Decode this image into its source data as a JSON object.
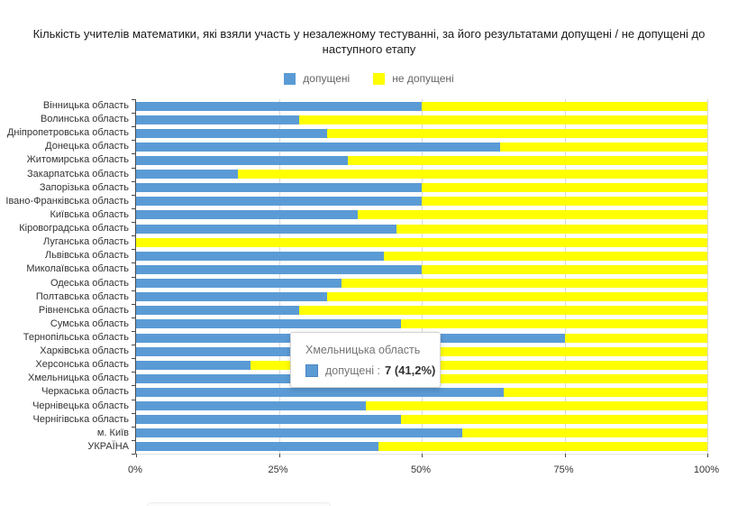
{
  "title": "Кількість учителів математики, які взяли участь у незалежному тестуванні, за його результатами допущені / не допущені до наступного етапу",
  "legend": {
    "items": [
      {
        "label": "допущені",
        "color": "#5B9BD5"
      },
      {
        "label": "не допущені",
        "color": "#FFFF00"
      }
    ]
  },
  "tooltip": {
    "title": "Хмельницька область",
    "swatch_color": "#5B9BD5",
    "label": "допущені :",
    "value": "7 (41,2%)"
  },
  "colors": {
    "admitted": "#5B9BD5",
    "not_admitted": "#FFFF00",
    "gridline": "#d9d9d9",
    "axis": "#4a4a4a"
  },
  "chart_data": {
    "type": "bar",
    "subtype": "stacked-100-horizontal",
    "title": "Кількість учителів математики, які взяли участь у незалежному тестуванні, за його результатами допущені / не допущені до наступного етапу",
    "xlabel": "",
    "ylabel": "",
    "xlim": [
      0,
      100
    ],
    "x_tick_values": [
      0,
      25,
      50,
      75,
      100
    ],
    "x_tick_labels": [
      "0%",
      "25%",
      "50%",
      "75%",
      "100%"
    ],
    "grid": true,
    "legend_position": "top-center",
    "categories": [
      "Вінницька область",
      "Волинська область",
      "Дніпропетровська область",
      "Донецька область",
      "Житомирська область",
      "Закарпатська область",
      "Запорізька область",
      "Івано-Франківська область",
      "Київська область",
      "Кіровоградська область",
      "Луганська область",
      "Львівська область",
      "Миколаївська область",
      "Одеська область",
      "Полтавська область",
      "Рівненська область",
      "Сумська область",
      "Тернопільська область",
      "Харківська область",
      "Херсонська область",
      "Хмельницька область",
      "Черкаська область",
      "Чернівецька область",
      "Чернігівська область",
      "м. Київ",
      "УКРАЇНА"
    ],
    "series": [
      {
        "name": "допущені",
        "color": "#5B9BD5",
        "values": [
          50.0,
          28.6,
          33.4,
          63.7,
          37.0,
          17.8,
          50.0,
          50.0,
          38.8,
          45.6,
          0.0,
          43.3,
          50.0,
          36.0,
          33.4,
          28.6,
          46.3,
          75.0,
          40.0,
          20.1,
          41.2,
          64.4,
          40.2,
          46.3,
          57.1,
          42.4
        ]
      },
      {
        "name": "не допущені",
        "color": "#FFFF00",
        "values": [
          50.0,
          71.4,
          66.6,
          36.3,
          63.0,
          82.2,
          50.0,
          50.0,
          61.2,
          54.4,
          100.0,
          56.7,
          50.0,
          64.0,
          66.6,
          71.4,
          53.7,
          25.0,
          60.0,
          79.9,
          58.8,
          35.6,
          59.8,
          53.7,
          42.9,
          57.6
        ]
      }
    ],
    "annotations": [
      {
        "target": "Хмельницька область",
        "series": "допущені",
        "text": "допущені : 7 (41,2%)"
      }
    ]
  }
}
